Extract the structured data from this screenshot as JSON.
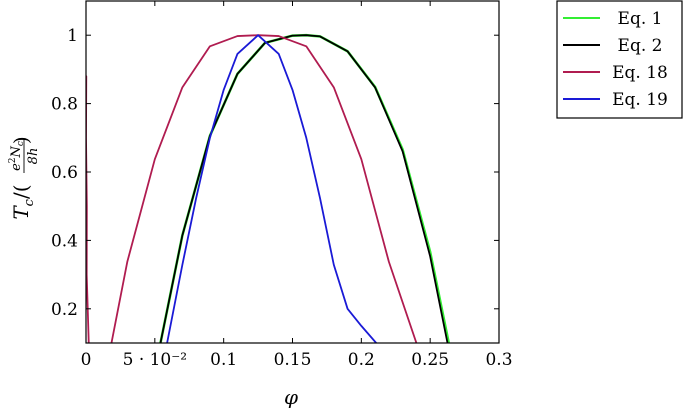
{
  "chart_data": {
    "type": "line",
    "xlabel": "φ",
    "ylabel": {
      "prefix": "T",
      "prefix_sub": "c",
      "slash": "/(",
      "numerator": "e",
      "numerator_sup": "2",
      "numerator_rest": "N",
      "numerator_sub": "c",
      "denominator": "8h",
      "suffix": ")"
    },
    "xlim": [
      0,
      0.3
    ],
    "ylim": [
      0.1,
      1.1
    ],
    "x_ticks": [
      {
        "value": 0,
        "label": "0"
      },
      {
        "value": 0.05,
        "label": "5 · 10⁻²"
      },
      {
        "value": 0.1,
        "label": "0.1"
      },
      {
        "value": 0.15,
        "label": "0.15"
      },
      {
        "value": 0.2,
        "label": "0.2"
      },
      {
        "value": 0.25,
        "label": "0.25"
      },
      {
        "value": 0.3,
        "label": "0.3"
      }
    ],
    "y_ticks": [
      {
        "value": 0.2,
        "label": "0.2"
      },
      {
        "value": 0.4,
        "label": "0.4"
      },
      {
        "value": 0.6,
        "label": "0.6"
      },
      {
        "value": 0.8,
        "label": "0.8"
      },
      {
        "value": 1.0,
        "label": "1"
      }
    ],
    "grid": false,
    "legend_position": "outside-right-top",
    "series": [
      {
        "name": "Eq. 1",
        "color": "#33ee33",
        "x": [
          0.0541,
          0.07,
          0.09,
          0.11,
          0.13,
          0.15,
          0.16,
          0.17,
          0.19,
          0.21,
          0.23,
          0.25,
          0.2635
        ],
        "y": [
          0.1,
          0.4147,
          0.7055,
          0.8869,
          0.9775,
          0.9987,
          1.0,
          0.9965,
          0.9529,
          0.8484,
          0.6653,
          0.3658,
          0.1
        ]
      },
      {
        "name": "Eq. 2",
        "color": "#000000",
        "x": [
          0.0541,
          0.07,
          0.09,
          0.11,
          0.13,
          0.15,
          0.16,
          0.17,
          0.19,
          0.21,
          0.23,
          0.25,
          0.2626
        ],
        "y": [
          0.1,
          0.4147,
          0.7055,
          0.8869,
          0.9775,
          0.9987,
          1.0,
          0.9965,
          0.9529,
          0.8473,
          0.6602,
          0.3532,
          0.1
        ]
      },
      {
        "name": "Eq. 18",
        "color": "#b01c50",
        "x": [
          0.0002,
          0.0,
          0.0006,
          0.0005,
          0.002,
          0.004,
          0.008,
          0.012,
          0.0185,
          0.03,
          0.05,
          0.07,
          0.09,
          0.11,
          0.125,
          0.14,
          0.16,
          0.18,
          0.2,
          0.22,
          0.24,
          0.2505
        ],
        "y": [
          0.88,
          0.7,
          0.5,
          0.3,
          0.1,
          "null",
          "null",
          "null",
          0.1,
          0.3375,
          0.6375,
          0.8475,
          0.9675,
          0.9975,
          1.0,
          0.9975,
          0.9675,
          0.8475,
          0.6375,
          0.3375,
          0.1,
          "null"
        ]
      },
      {
        "name": "Eq. 19",
        "color": "#1a1ad6",
        "x": [
          0.0589,
          0.07,
          0.08,
          0.09,
          0.1,
          0.11,
          0.125,
          0.14,
          0.15,
          0.16,
          0.17,
          0.18,
          0.19,
          0.2,
          0.2108
        ],
        "y": [
          0.1,
          0.3288,
          0.5235,
          0.6995,
          0.84,
          0.9453,
          1.0,
          0.9453,
          0.84,
          0.7,
          0.5235,
          0.3288,
          0.2,
          0.15,
          0.1
        ]
      }
    ]
  }
}
